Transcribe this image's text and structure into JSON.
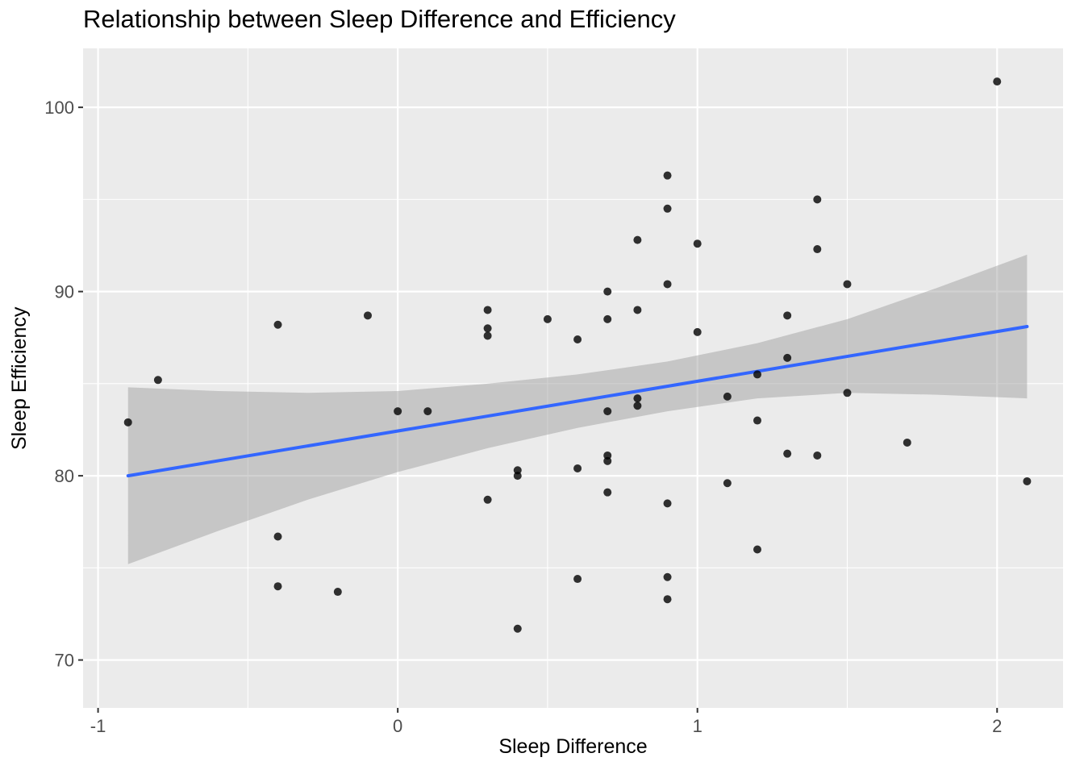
{
  "chart_data": {
    "type": "scatter",
    "title": "Relationship between Sleep Difference and Efficiency",
    "xlabel": "Sleep Difference",
    "ylabel": "Sleep Efficiency",
    "xlim": [
      -1.05,
      2.22
    ],
    "ylim": [
      67.4,
      103.2
    ],
    "x_ticks": [
      -1,
      0,
      1,
      2
    ],
    "y_ticks": [
      70,
      80,
      90,
      100
    ],
    "x_minor": [
      -0.5,
      0.5,
      1.5
    ],
    "y_minor": [
      75,
      85,
      95
    ],
    "grid": "on",
    "legend": "none",
    "points": [
      [
        -0.9,
        82.9
      ],
      [
        -0.8,
        85.2
      ],
      [
        -0.4,
        88.2
      ],
      [
        -0.4,
        76.7
      ],
      [
        -0.4,
        74.0
      ],
      [
        -0.2,
        73.7
      ],
      [
        -0.1,
        88.7
      ],
      [
        0.0,
        83.5
      ],
      [
        0.1,
        83.5
      ],
      [
        0.3,
        89.0
      ],
      [
        0.3,
        88.0
      ],
      [
        0.3,
        87.6
      ],
      [
        0.3,
        78.7
      ],
      [
        0.4,
        80.3
      ],
      [
        0.4,
        80.0
      ],
      [
        0.4,
        71.7
      ],
      [
        0.5,
        88.5
      ],
      [
        0.6,
        87.4
      ],
      [
        0.6,
        80.4
      ],
      [
        0.6,
        74.4
      ],
      [
        0.7,
        90.0
      ],
      [
        0.7,
        88.5
      ],
      [
        0.7,
        83.5
      ],
      [
        0.7,
        81.1
      ],
      [
        0.7,
        80.8
      ],
      [
        0.7,
        79.1
      ],
      [
        0.8,
        92.8
      ],
      [
        0.8,
        89.0
      ],
      [
        0.8,
        84.2
      ],
      [
        0.8,
        83.8
      ],
      [
        0.9,
        96.3
      ],
      [
        0.9,
        94.5
      ],
      [
        0.9,
        90.4
      ],
      [
        0.9,
        78.5
      ],
      [
        0.9,
        74.5
      ],
      [
        0.9,
        73.3
      ],
      [
        1.0,
        92.6
      ],
      [
        1.0,
        87.8
      ],
      [
        1.1,
        84.3
      ],
      [
        1.1,
        79.6
      ],
      [
        1.2,
        85.5
      ],
      [
        1.2,
        83.0
      ],
      [
        1.2,
        76.0
      ],
      [
        1.3,
        88.7
      ],
      [
        1.3,
        86.4
      ],
      [
        1.3,
        81.2
      ],
      [
        1.4,
        95.0
      ],
      [
        1.4,
        92.3
      ],
      [
        1.4,
        81.1
      ],
      [
        1.5,
        90.4
      ],
      [
        1.5,
        84.5
      ],
      [
        1.7,
        81.8
      ],
      [
        2.0,
        101.4
      ],
      [
        2.1,
        79.7
      ]
    ],
    "trend_line": {
      "x": [
        -0.9,
        2.1
      ],
      "y": [
        80.0,
        88.1
      ]
    },
    "ribbon": {
      "x": [
        -0.9,
        -0.6,
        -0.3,
        0.0,
        0.3,
        0.6,
        0.9,
        1.2,
        1.5,
        1.8,
        2.1
      ],
      "lower": [
        75.2,
        77.0,
        78.7,
        80.2,
        81.5,
        82.6,
        83.5,
        84.2,
        84.5,
        84.4,
        84.2
      ],
      "upper": [
        84.8,
        84.6,
        84.5,
        84.6,
        85.0,
        85.5,
        86.2,
        87.2,
        88.5,
        90.2,
        92.0
      ]
    },
    "colors": {
      "panel": "#EBEBEB",
      "grid": "#FFFFFF",
      "point": "#000000",
      "line": "#3366FF",
      "ribbon": "#999999",
      "tick": "#333333",
      "tick_label": "#4D4D4D",
      "axis_title": "#000000"
    }
  }
}
